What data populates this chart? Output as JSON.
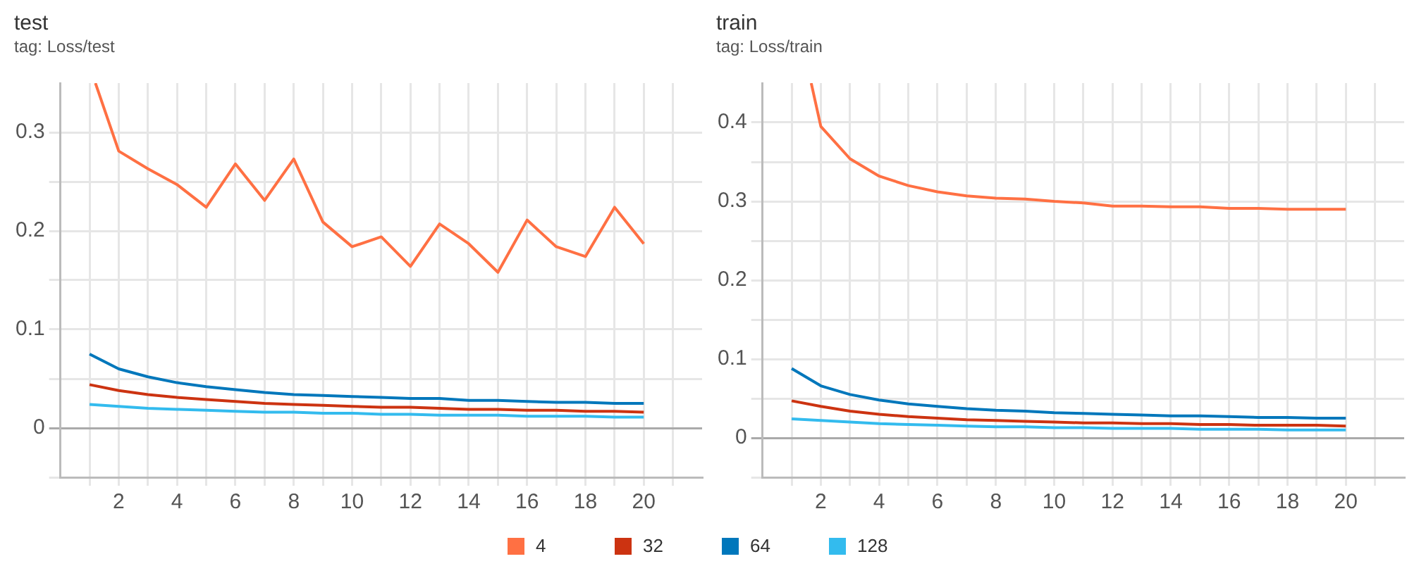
{
  "chart_data": [
    {
      "type": "line",
      "title": "test",
      "subtitle": "tag: Loss/test",
      "x": [
        1,
        2,
        3,
        4,
        5,
        6,
        7,
        8,
        9,
        10,
        11,
        12,
        13,
        14,
        15,
        16,
        17,
        18,
        19,
        20
      ],
      "series": [
        {
          "name": "4",
          "color": "#ff7043",
          "x": [
            1.2,
            2,
            3,
            4,
            5,
            6,
            7,
            8,
            9,
            10,
            11,
            12,
            13,
            14,
            15,
            16,
            17,
            18,
            19,
            20
          ],
          "values": [
            0.35,
            0.281,
            0.263,
            0.247,
            0.224,
            0.268,
            0.231,
            0.273,
            0.209,
            0.184,
            0.194,
            0.164,
            0.207,
            0.187,
            0.158,
            0.211,
            0.184,
            0.174,
            0.224,
            0.187
          ]
        },
        {
          "name": "32",
          "color": "#cc3311",
          "values": [
            0.044,
            0.038,
            0.034,
            0.031,
            0.029,
            0.027,
            0.025,
            0.024,
            0.023,
            0.022,
            0.021,
            0.021,
            0.02,
            0.019,
            0.019,
            0.018,
            0.018,
            0.017,
            0.017,
            0.016
          ]
        },
        {
          "name": "64",
          "color": "#0077bb",
          "values": [
            0.075,
            0.06,
            0.052,
            0.046,
            0.042,
            0.039,
            0.036,
            0.034,
            0.033,
            0.032,
            0.031,
            0.03,
            0.03,
            0.028,
            0.028,
            0.027,
            0.026,
            0.026,
            0.025,
            0.025
          ]
        },
        {
          "name": "128",
          "color": "#33bbee",
          "values": [
            0.024,
            0.022,
            0.02,
            0.019,
            0.018,
            0.017,
            0.016,
            0.016,
            0.015,
            0.015,
            0.014,
            0.014,
            0.013,
            0.013,
            0.013,
            0.012,
            0.012,
            0.012,
            0.011,
            0.011
          ]
        }
      ],
      "xlim": [
        0,
        22
      ],
      "xticks": [
        {
          "value": 1,
          "label": null
        },
        2,
        {
          "value": 3,
          "label": null
        },
        4,
        {
          "value": 5,
          "label": null
        },
        6,
        {
          "value": 7,
          "label": null
        },
        8,
        {
          "value": 9,
          "label": null
        },
        10,
        {
          "value": 11,
          "label": null
        },
        12,
        {
          "value": 13,
          "label": null
        },
        14,
        {
          "value": 15,
          "label": null
        },
        16,
        {
          "value": 17,
          "label": null
        },
        18,
        {
          "value": 19,
          "label": null
        },
        20,
        {
          "value": 21,
          "label": null
        }
      ],
      "ylim": [
        -0.05,
        0.35
      ],
      "yticks": [
        {
          "value": -0.05,
          "label": null
        },
        0,
        {
          "value": 0.05,
          "label": null
        },
        0.1,
        {
          "value": 0.15,
          "label": null
        },
        0.2,
        {
          "value": 0.25,
          "label": null
        },
        0.3
      ],
      "grid": true,
      "legend": "bottom"
    },
    {
      "type": "line",
      "title": "train",
      "subtitle": "tag: Loss/train",
      "x": [
        1,
        2,
        3,
        4,
        5,
        6,
        7,
        8,
        9,
        10,
        11,
        12,
        13,
        14,
        15,
        16,
        17,
        18,
        19,
        20
      ],
      "series": [
        {
          "name": "4",
          "color": "#ff7043",
          "x": [
            1.67,
            2,
            3,
            4,
            5,
            6,
            7,
            8,
            9,
            10,
            11,
            12,
            13,
            14,
            15,
            16,
            17,
            18,
            19,
            20
          ],
          "values": [
            0.45,
            0.395,
            0.354,
            0.332,
            0.32,
            0.312,
            0.307,
            0.304,
            0.303,
            0.3,
            0.298,
            0.294,
            0.294,
            0.293,
            0.293,
            0.291,
            0.291,
            0.29,
            0.29,
            0.29
          ]
        },
        {
          "name": "32",
          "color": "#cc3311",
          "values": [
            0.047,
            0.04,
            0.034,
            0.03,
            0.027,
            0.025,
            0.023,
            0.022,
            0.021,
            0.02,
            0.019,
            0.019,
            0.018,
            0.018,
            0.017,
            0.017,
            0.016,
            0.016,
            0.016,
            0.015
          ]
        },
        {
          "name": "64",
          "color": "#0077bb",
          "values": [
            0.088,
            0.066,
            0.055,
            0.048,
            0.043,
            0.04,
            0.037,
            0.035,
            0.034,
            0.032,
            0.031,
            0.03,
            0.029,
            0.028,
            0.028,
            0.027,
            0.026,
            0.026,
            0.025,
            0.025
          ]
        },
        {
          "name": "128",
          "color": "#33bbee",
          "values": [
            0.024,
            0.022,
            0.02,
            0.018,
            0.017,
            0.016,
            0.015,
            0.014,
            0.014,
            0.013,
            0.013,
            0.012,
            0.012,
            0.012,
            0.011,
            0.011,
            0.011,
            0.01,
            0.01,
            0.01
          ]
        }
      ],
      "xlim": [
        0,
        22
      ],
      "xticks": [
        {
          "value": 1,
          "label": null
        },
        2,
        {
          "value": 3,
          "label": null
        },
        4,
        {
          "value": 5,
          "label": null
        },
        6,
        {
          "value": 7,
          "label": null
        },
        8,
        {
          "value": 9,
          "label": null
        },
        10,
        {
          "value": 11,
          "label": null
        },
        12,
        {
          "value": 13,
          "label": null
        },
        14,
        {
          "value": 15,
          "label": null
        },
        16,
        {
          "value": 17,
          "label": null
        },
        18,
        {
          "value": 19,
          "label": null
        },
        20,
        {
          "value": 21,
          "label": null
        }
      ],
      "ylim": [
        -0.05,
        0.45
      ],
      "yticks": [
        {
          "value": -0.05,
          "label": null
        },
        0,
        {
          "value": 0.05,
          "label": null
        },
        0.1,
        {
          "value": 0.15,
          "label": null
        },
        0.2,
        {
          "value": 0.25,
          "label": null
        },
        0.3,
        {
          "value": 0.35,
          "label": null
        },
        0.4
      ],
      "grid": true,
      "legend": "bottom"
    }
  ]
}
